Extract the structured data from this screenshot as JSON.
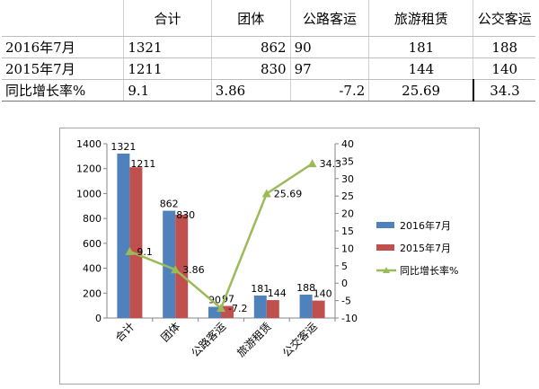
{
  "table": {
    "headers": [
      "合计",
      "团体",
      "公路客运",
      "旅游租赁",
      "公交客运"
    ],
    "rows": [
      {
        "label": "2016年7月",
        "cells": [
          "1321",
          "862",
          "90",
          "181",
          "188"
        ]
      },
      {
        "label": "2015年7月",
        "cells": [
          "1211",
          "830",
          "97",
          "144",
          "140"
        ]
      },
      {
        "label": "同比增长率%",
        "cells": [
          "9.1",
          "3.86",
          "-7.2",
          "25.69",
          "34.3"
        ]
      }
    ]
  },
  "chart_data": {
    "type": "bar",
    "categories": [
      "合计",
      "团体",
      "公路客运",
      "旅游租赁",
      "公交客运"
    ],
    "series": [
      {
        "name": "2016年7月",
        "type": "bar",
        "axis": "left",
        "color": "#4f81bd",
        "values": [
          1321,
          862,
          90,
          181,
          188
        ]
      },
      {
        "name": "2015年7月",
        "type": "bar",
        "axis": "left",
        "color": "#c0504d",
        "values": [
          1211,
          830,
          97,
          144,
          140
        ]
      },
      {
        "name": "同比增长率%",
        "type": "line",
        "axis": "right",
        "color": "#9bbb59",
        "values": [
          9.1,
          3.86,
          -7.2,
          25.69,
          34.3
        ]
      }
    ],
    "bar_labels": [
      [
        "1321",
        "862",
        "90",
        "181",
        "188"
      ],
      [
        "1211",
        "830",
        "97",
        "144",
        "140"
      ]
    ],
    "line_labels": [
      "9.1",
      "3.86",
      "-7.2",
      "25.69",
      "34.3"
    ],
    "y_left": {
      "min": 0,
      "max": 1400,
      "step": 200,
      "ticks": [
        "0",
        "200",
        "400",
        "600",
        "800",
        "1000",
        "1200",
        "1400"
      ]
    },
    "y_right": {
      "min": -10,
      "max": 40,
      "step": 5,
      "ticks": [
        "-10",
        "-5",
        "0",
        "5",
        "10",
        "15",
        "20",
        "25",
        "30",
        "35",
        "40"
      ]
    },
    "grid": false,
    "legend_position": "right"
  }
}
